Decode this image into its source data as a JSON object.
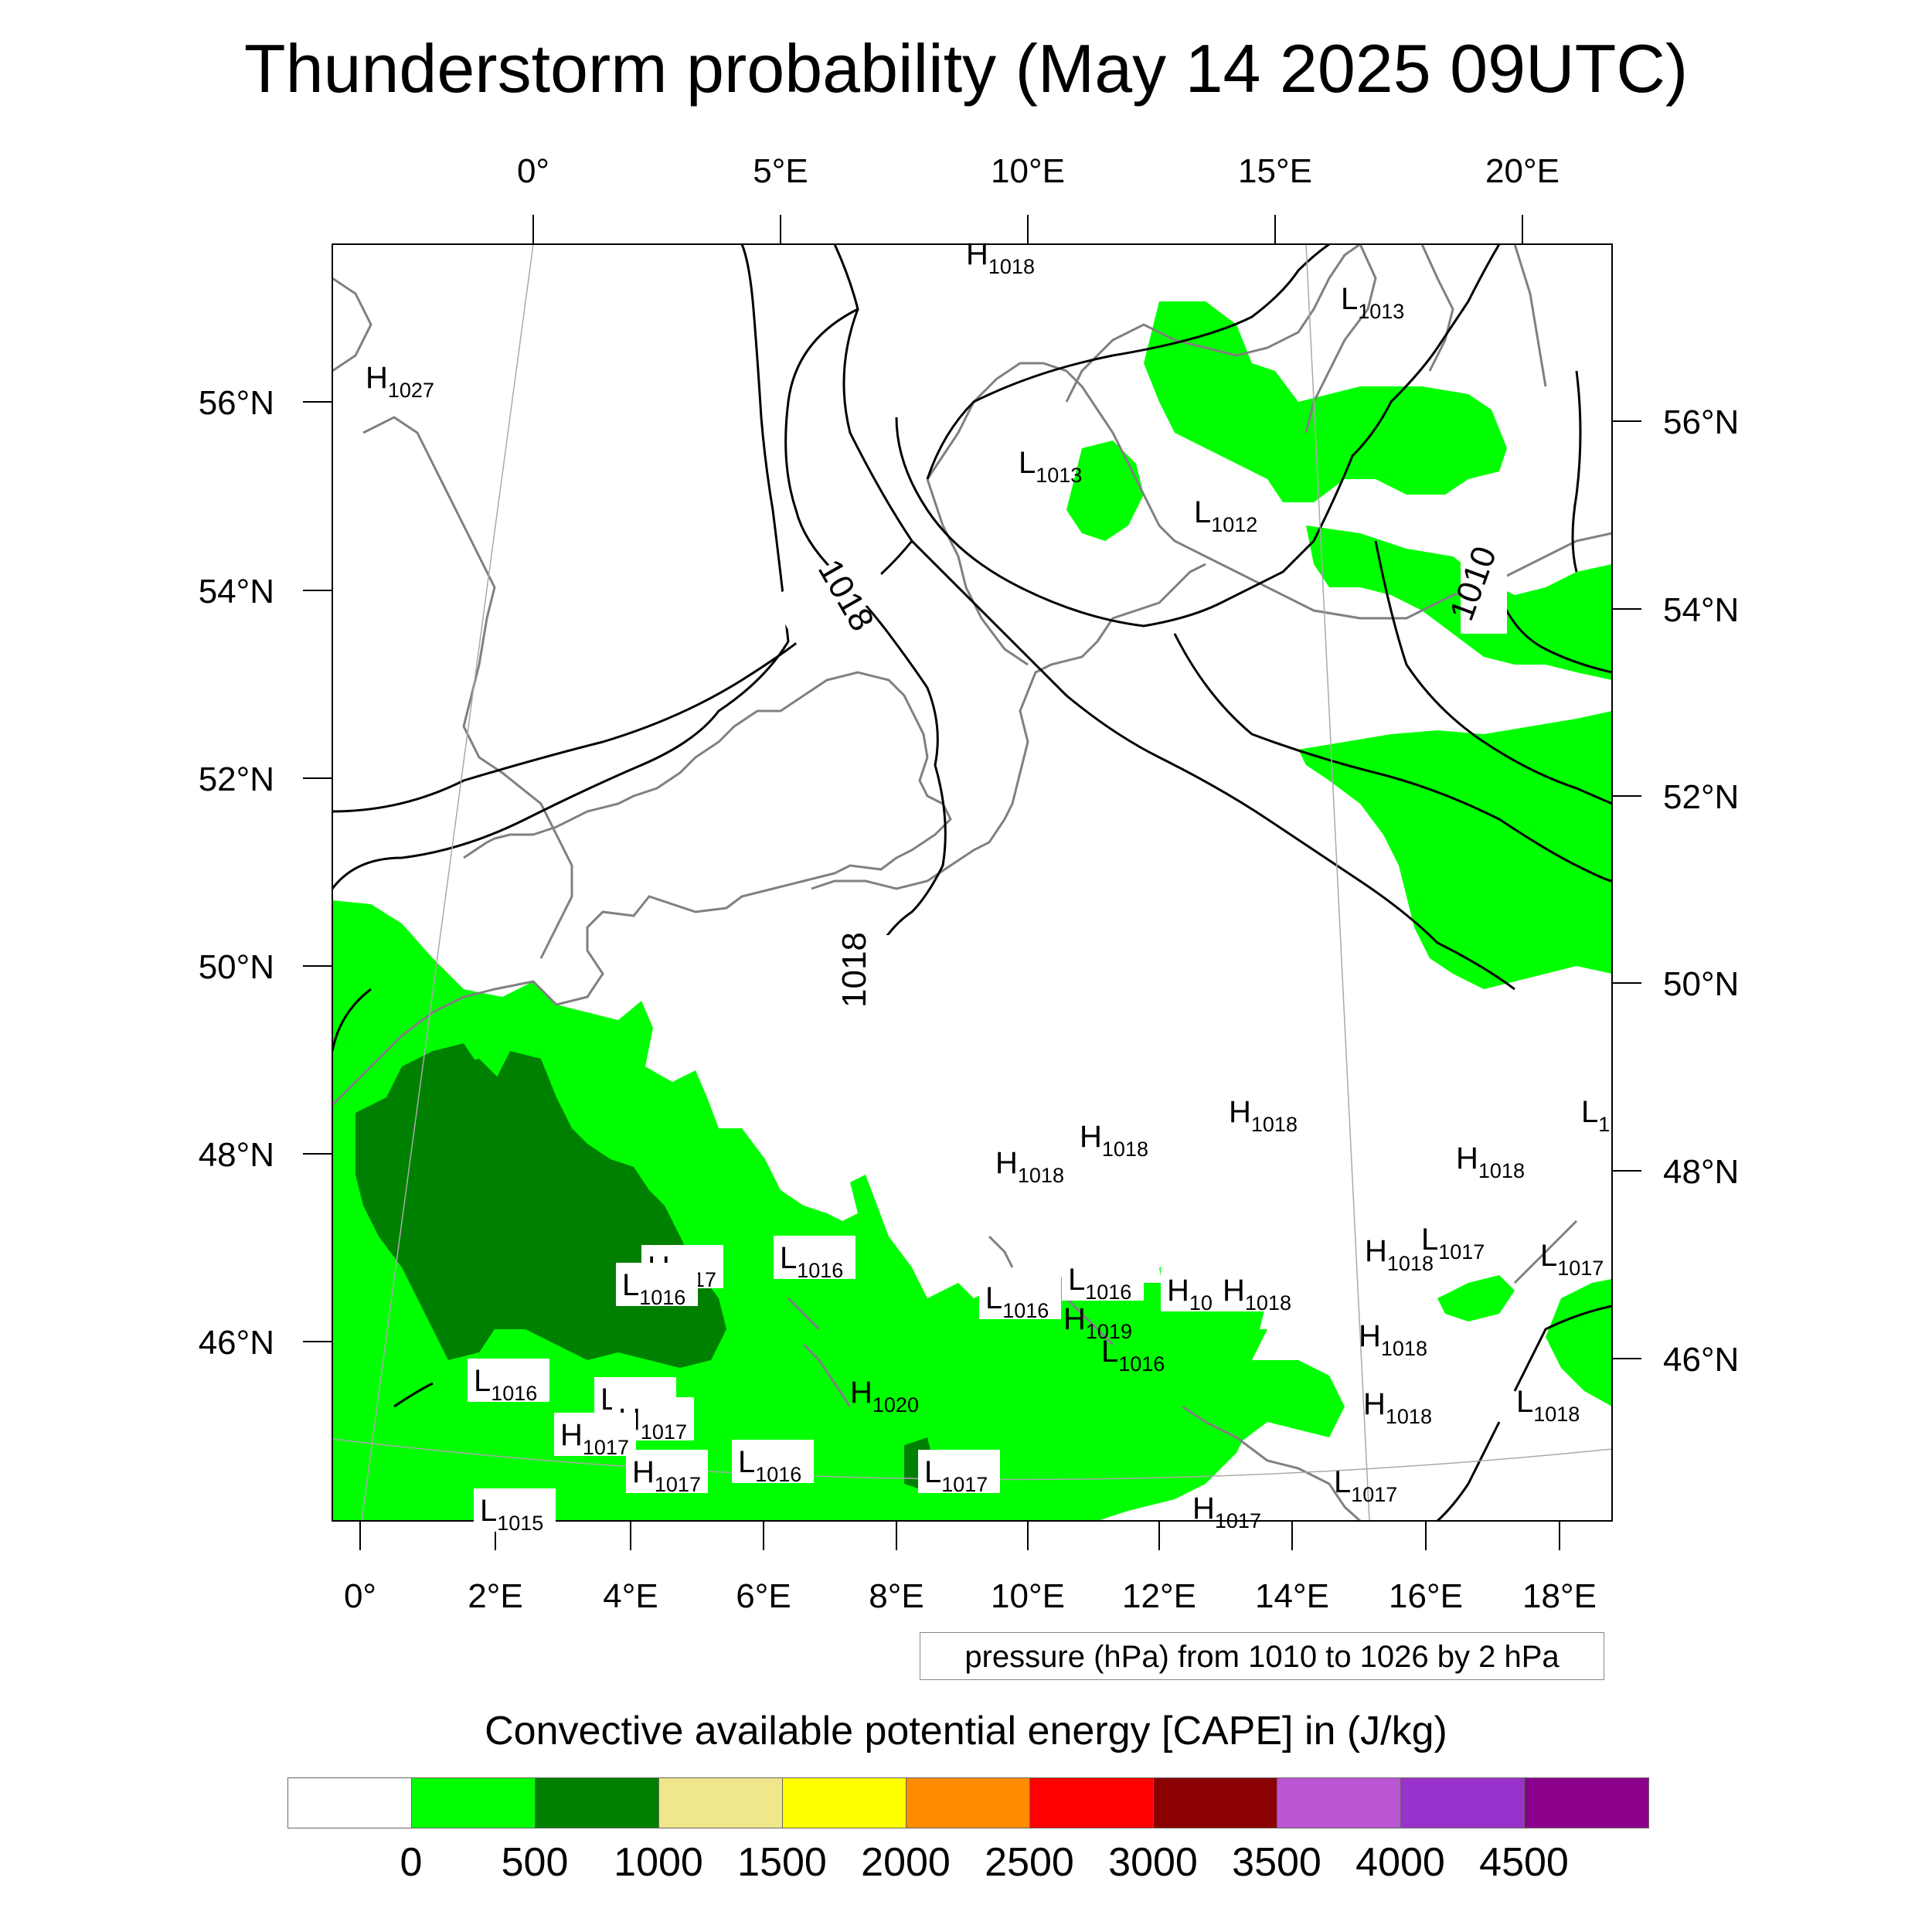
{
  "title": "Thunderstorm probability (May 14 2025 09UTC)",
  "top_lon_labels": [
    "0°",
    "5°E",
    "10°E",
    "15°E",
    "20°E"
  ],
  "bottom_lon_labels": [
    "0°",
    "2°E",
    "4°E",
    "6°E",
    "8°E",
    "10°E",
    "12°E",
    "14°E",
    "16°E",
    "18°E"
  ],
  "left_lat_labels": [
    "56°N",
    "54°N",
    "52°N",
    "50°N",
    "48°N",
    "46°N"
  ],
  "right_lat_labels": [
    "56°N",
    "54°N",
    "52°N",
    "50°N",
    "48°N",
    "46°N"
  ],
  "isobar_labels": [
    "1018",
    "1018",
    "1010"
  ],
  "pressure_systems": [
    {
      "type": "H",
      "value": "1018"
    },
    {
      "type": "L",
      "value": "1013"
    },
    {
      "type": "H",
      "value": "1027"
    },
    {
      "type": "L",
      "value": "1013"
    },
    {
      "type": "L",
      "value": "1012"
    },
    {
      "type": "H",
      "value": "1018"
    },
    {
      "type": "H",
      "value": "1018"
    },
    {
      "type": "H",
      "value": "1018"
    },
    {
      "type": "H",
      "value": "1018"
    },
    {
      "type": "L",
      "value": "1"
    },
    {
      "type": "H",
      "value": "1017"
    },
    {
      "type": "L",
      "value": "1016"
    },
    {
      "type": "L",
      "value": "1016"
    },
    {
      "type": "L",
      "value": "1016"
    },
    {
      "type": "L",
      "value": "1016"
    },
    {
      "type": "H",
      "value": "10"
    },
    {
      "type": "H",
      "value": "1018"
    },
    {
      "type": "H",
      "value": "1018"
    },
    {
      "type": "L",
      "value": "1017"
    },
    {
      "type": "L",
      "value": "1017"
    },
    {
      "type": "H",
      "value": "1019"
    },
    {
      "type": "L",
      "value": "1016"
    },
    {
      "type": "H",
      "value": "1018"
    },
    {
      "type": "L",
      "value": "1016"
    },
    {
      "type": "L",
      "value": "1016"
    },
    {
      "type": "H",
      "value": "1017"
    },
    {
      "type": "H",
      "value": "1017"
    },
    {
      "type": "H",
      "value": "1020"
    },
    {
      "type": "H",
      "value": "1018"
    },
    {
      "type": "L",
      "value": "1018"
    },
    {
      "type": "H",
      "value": "1017"
    },
    {
      "type": "L",
      "value": "1016"
    },
    {
      "type": "L",
      "value": "1017"
    },
    {
      "type": "L",
      "value": "1017"
    },
    {
      "type": "H",
      "value": "1017"
    },
    {
      "type": "L",
      "value": "1015"
    }
  ],
  "info_box": "pressure (hPa) from 1010 to 1026 by 2 hPa",
  "colorbar": {
    "title": "Convective available potential energy [CAPE] in (J/kg)",
    "colors": [
      "#ffffff",
      "#00ff00",
      "#008000",
      "#f0e68c",
      "#ffff00",
      "#ff8c00",
      "#ff0000",
      "#8b0000",
      "#ba55d3",
      "#9932cc",
      "#8b008b"
    ],
    "tick_labels": [
      "0",
      "500",
      "1000",
      "1500",
      "2000",
      "2500",
      "3000",
      "3500",
      "4000",
      "4500"
    ]
  }
}
